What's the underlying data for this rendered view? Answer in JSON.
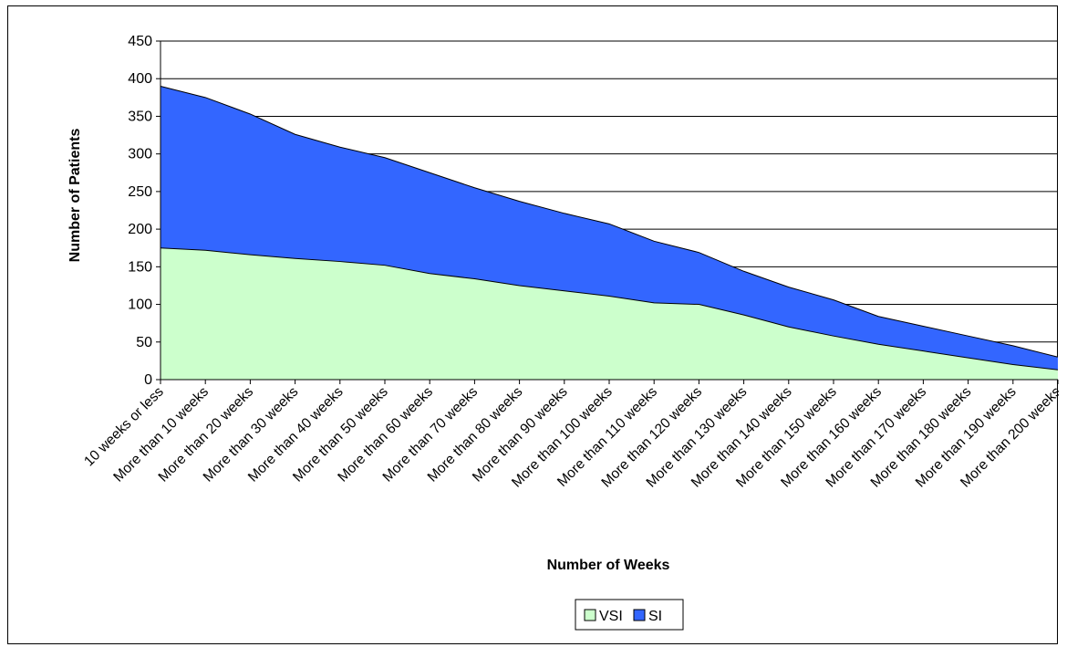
{
  "chart_data": {
    "type": "area",
    "stacked": true,
    "title": "",
    "xlabel": "Number of Weeks",
    "ylabel": "Number of Patients",
    "ylim": [
      0,
      450
    ],
    "yticks": [
      0,
      50,
      100,
      150,
      200,
      250,
      300,
      350,
      400,
      450
    ],
    "grid": true,
    "legend_position": "bottom",
    "categories": [
      "10 weeks or less",
      "More than 10 weeks",
      "More than 20 weeks",
      "More than 30 weeks",
      "More than 40 weeks",
      "More than 50 weeks",
      "More than 60 weeks",
      "More than 70 weeks",
      "More than 80 weeks",
      "More than 90 weeks",
      "More than 100 weeks",
      "More than 110 weeks",
      "More than 120 weeks",
      "More than 130 weeks",
      "More than 140 weeks",
      "More than 150 weeks",
      "More than 160 weeks",
      "More than 170 weeks",
      "More than 180 weeks",
      "More than 190 weeks",
      "More than 200 weeks"
    ],
    "series": [
      {
        "name": "VSI",
        "color": "#ccffcc",
        "values": [
          175,
          172,
          166,
          161,
          157,
          152,
          141,
          134,
          125,
          118,
          111,
          102,
          100,
          86,
          70,
          58,
          47,
          38,
          29,
          20,
          13
        ]
      },
      {
        "name": "SI",
        "color": "#3366ff",
        "values": [
          215,
          203,
          187,
          165,
          152,
          143,
          134,
          121,
          112,
          103,
          96,
          82,
          69,
          58,
          53,
          48,
          37,
          33,
          29,
          25,
          17
        ]
      }
    ]
  }
}
